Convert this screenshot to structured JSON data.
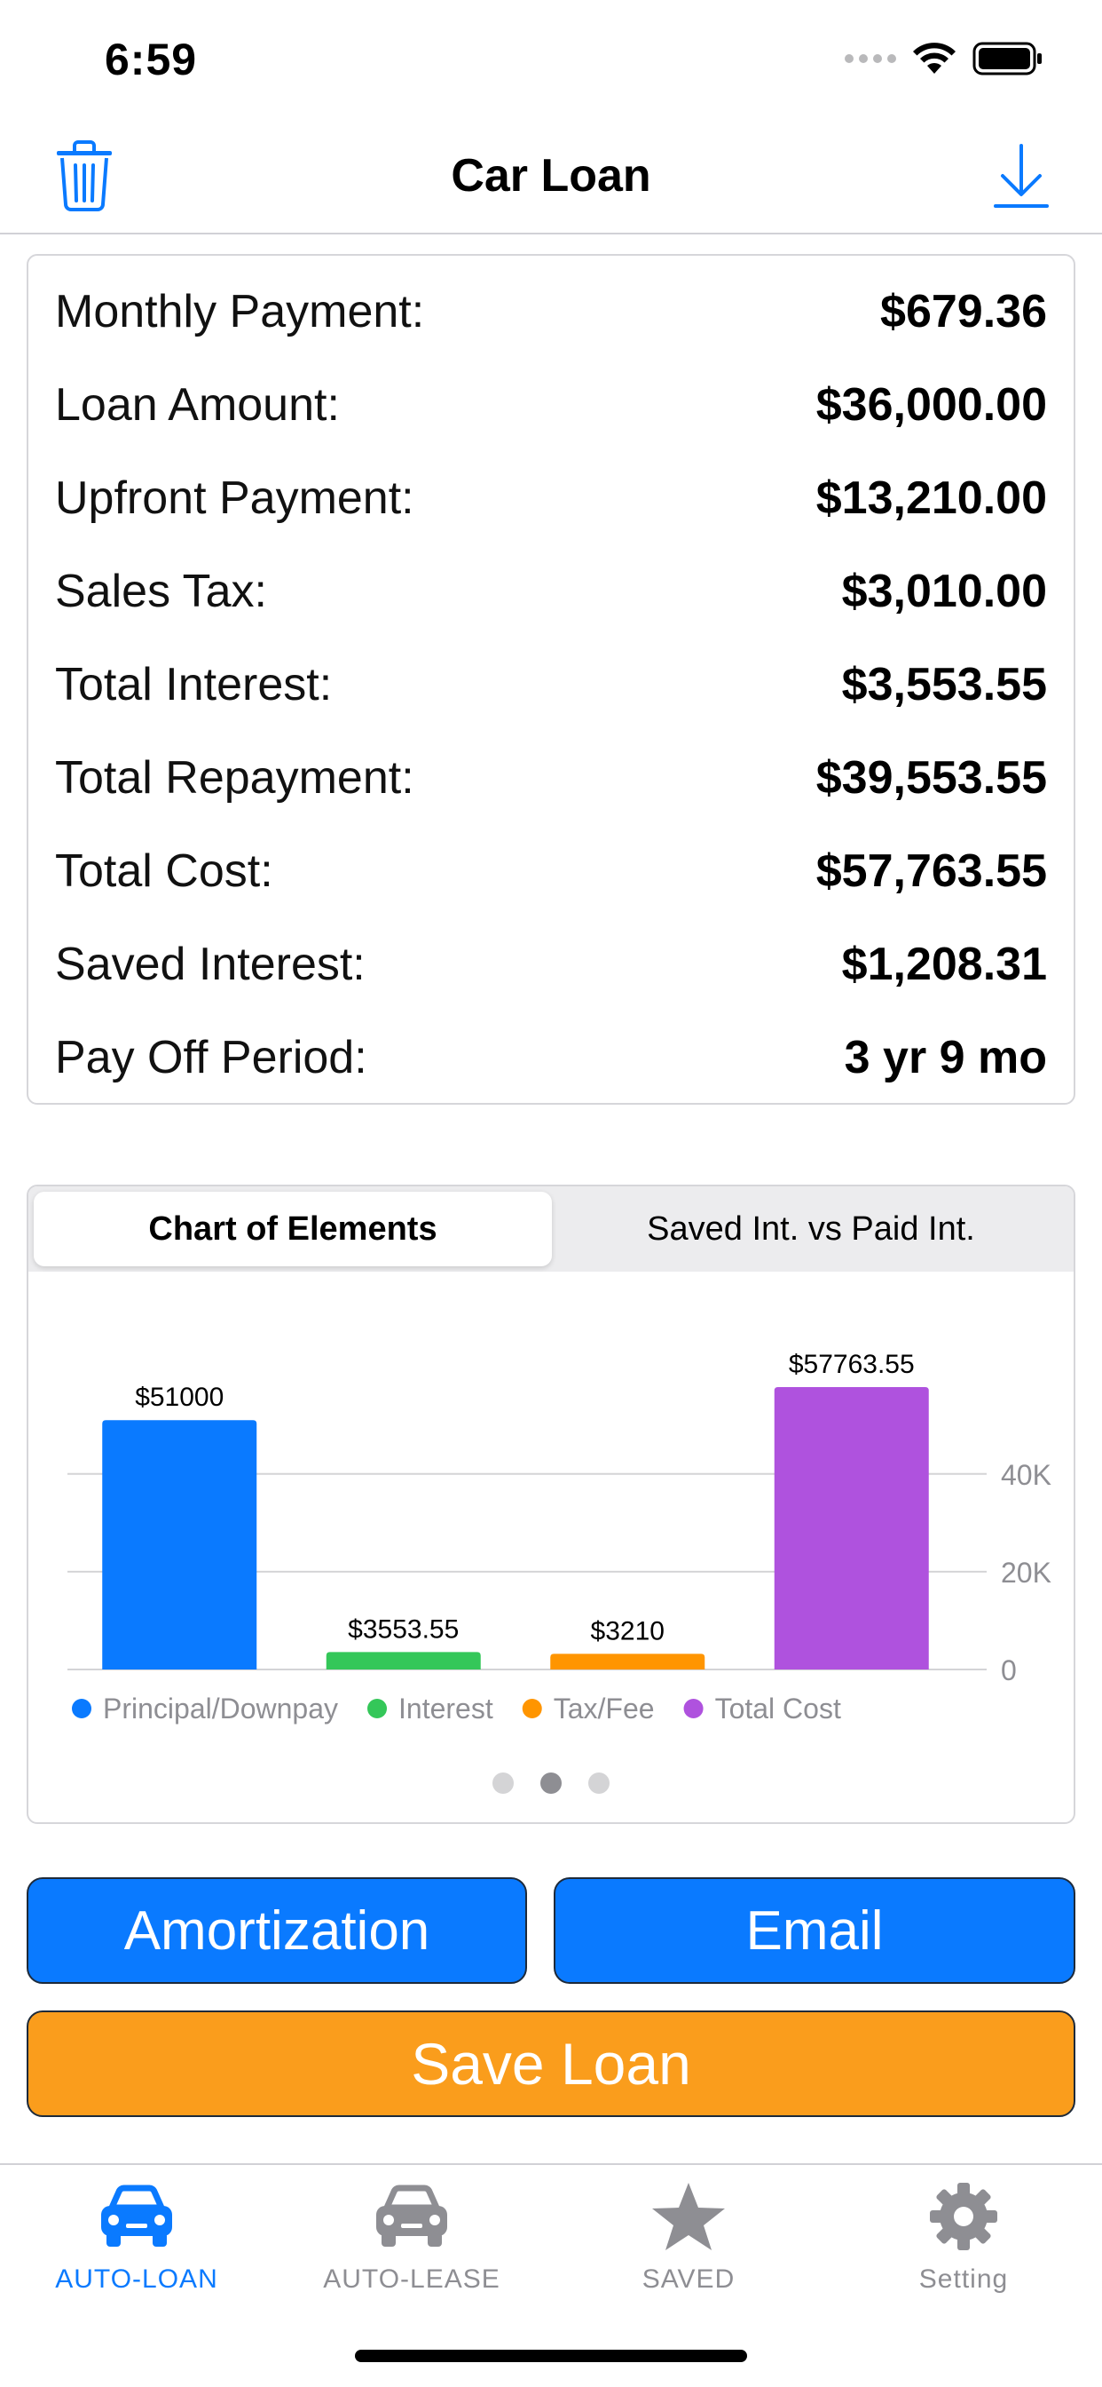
{
  "status_bar": {
    "time": "6:59"
  },
  "nav": {
    "title": "Car Loan",
    "trash_icon": "trash-icon",
    "download_icon": "download-icon"
  },
  "summary": {
    "rows": [
      {
        "label": "Monthly Payment:",
        "value": "$679.36"
      },
      {
        "label": "Loan Amount:",
        "value": "$36,000.00"
      },
      {
        "label": "Upfront Payment:",
        "value": "$13,210.00"
      },
      {
        "label": "Sales Tax:",
        "value": "$3,010.00"
      },
      {
        "label": "Total Interest:",
        "value": "$3,553.55"
      },
      {
        "label": "Total Repayment:",
        "value": "$39,553.55"
      },
      {
        "label": "Total Cost:",
        "value": "$57,763.55"
      },
      {
        "label": "Saved Interest:",
        "value": "$1,208.31"
      },
      {
        "label": "Pay Off Period:",
        "value": "3 yr 9 mo"
      }
    ]
  },
  "chart_tabs": {
    "items": [
      "Chart of Elements",
      "Saved Int. vs Paid Int."
    ],
    "selected": 0
  },
  "chart_data": {
    "type": "bar",
    "categories": [
      "Principal/Downpay",
      "Interest",
      "Tax/Fee",
      "Total Cost"
    ],
    "values": [
      51000,
      3553.55,
      3210,
      57763.55
    ],
    "data_labels": [
      "$51000",
      "$3553.55",
      "$3210",
      "$57763.55"
    ],
    "colors": [
      "#0a7aff",
      "#34c759",
      "#ff9500",
      "#af52de"
    ],
    "y_ticks": [
      0,
      20000,
      40000
    ],
    "y_tick_labels": [
      "0",
      "20K",
      "40K"
    ],
    "ylim": [
      0,
      57763.55
    ],
    "y_axis_side": "right",
    "grid": true,
    "legend_position": "bottom"
  },
  "pager": {
    "count": 3,
    "current": 1
  },
  "buttons": {
    "amortization": "Amortization",
    "email": "Email",
    "save": "Save Loan"
  },
  "tab_bar": {
    "items": [
      {
        "label": "AUTO-LOAN",
        "icon": "car-front-icon",
        "active": true
      },
      {
        "label": "AUTO-LEASE",
        "icon": "car-front-icon",
        "active": false
      },
      {
        "label": "SAVED",
        "icon": "star-icon",
        "active": false
      },
      {
        "label": "Setting",
        "icon": "gear-icon",
        "active": false
      }
    ]
  },
  "colors": {
    "accent": "#0a7aff",
    "save_button": "#fa9d1c",
    "inactive_tab": "#8e8e93"
  }
}
